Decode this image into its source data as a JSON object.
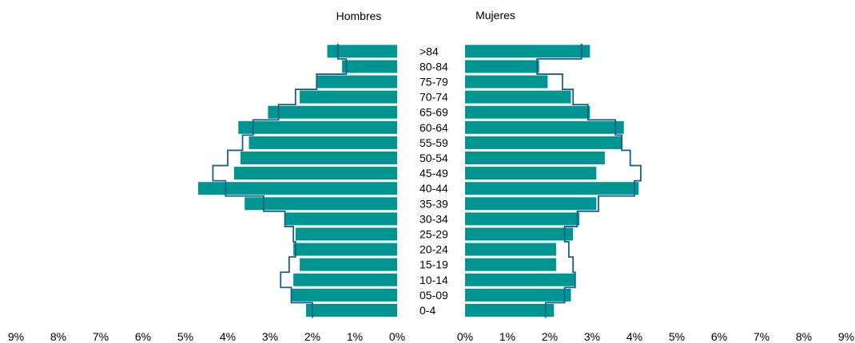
{
  "chart_data": {
    "type": "bar",
    "subtype": "population-pyramid",
    "panels": {
      "left_title": "Hombres",
      "right_title": "Mujeres"
    },
    "categories": [
      "0-4",
      "05-09",
      "10-14",
      "15-19",
      "20-24",
      "25-29",
      "30-34",
      "35-39",
      "40-44",
      "45-49",
      "50-54",
      "55-59",
      "60-64",
      "65-69",
      "70-74",
      "75-79",
      "80-84",
      ">84"
    ],
    "series": [
      {
        "role": "bars",
        "side": "left",
        "values": [
          2.15,
          2.5,
          2.45,
          2.3,
          2.45,
          2.4,
          2.65,
          3.6,
          4.7,
          3.85,
          3.7,
          3.5,
          3.75,
          3.05,
          2.3,
          1.9,
          1.3,
          1.65
        ]
      },
      {
        "role": "bars",
        "side": "right",
        "values": [
          2.1,
          2.5,
          2.6,
          2.15,
          2.15,
          2.55,
          2.7,
          3.1,
          4.1,
          3.1,
          3.3,
          3.7,
          3.75,
          2.95,
          2.5,
          1.95,
          1.75,
          2.95
        ]
      },
      {
        "role": "outline",
        "side": "left",
        "values": [
          2.0,
          2.5,
          2.75,
          2.55,
          2.4,
          2.45,
          2.65,
          3.15,
          4.05,
          4.35,
          4.0,
          3.65,
          3.4,
          2.8,
          2.4,
          1.9,
          1.2,
          1.4
        ]
      },
      {
        "role": "outline",
        "side": "right",
        "values": [
          1.9,
          2.35,
          2.6,
          2.55,
          2.45,
          2.35,
          2.65,
          3.15,
          4.0,
          4.15,
          3.9,
          3.7,
          3.55,
          2.9,
          2.55,
          2.3,
          1.7,
          2.75
        ]
      }
    ],
    "x_ticks": [
      "0%",
      "1%",
      "2%",
      "3%",
      "4%",
      "5%",
      "6%",
      "7%",
      "8%",
      "9%"
    ],
    "xlim": [
      0,
      9
    ],
    "colors": {
      "bar": "#009590",
      "outline": "#1b5e8c"
    },
    "grid": false,
    "legend": "none"
  }
}
